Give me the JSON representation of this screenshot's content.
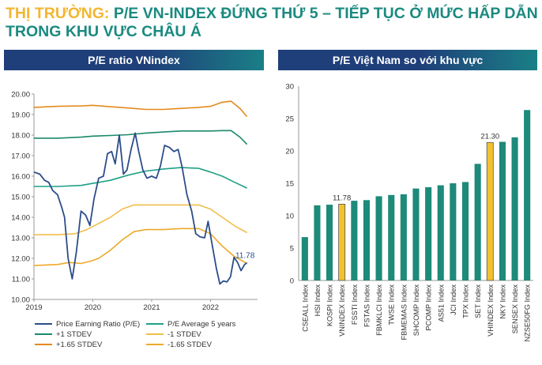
{
  "header": {
    "label": "THỊ TRƯỜNG:",
    "title": "P/E VN-INDEX ĐỨNG THỨ 5 – TIẾP TỤC Ở MỨC HẤP DẪN TRONG KHU VỰC CHÂU Á"
  },
  "colors": {
    "pe": "#2c4d89",
    "avg": "#1ea085",
    "std1": "#1a8a6a",
    "std165": "#e48a1c",
    "neg1": "#f0be4c",
    "neg165": "#eda92a",
    "bar": "#1d8a7a",
    "bar_highlight": "#f2c12e"
  },
  "chart_data": [
    {
      "type": "line",
      "title": "P/E ratio VNindex",
      "ylim": [
        10,
        20
      ],
      "yticks": [
        "10.00",
        "11.00",
        "12.00",
        "13.00",
        "14.00",
        "15.00",
        "16.00",
        "17.00",
        "18.00",
        "19.00",
        "20.00"
      ],
      "xlim": [
        2019,
        2022.8
      ],
      "xticks": [
        {
          "value": 2019,
          "label": "2019"
        },
        {
          "value": 2020,
          "label": "2020"
        },
        {
          "value": 2021,
          "label": "2021"
        },
        {
          "value": 2022,
          "label": "2022"
        }
      ],
      "annotation": {
        "text": "11.78",
        "x": 2022.56,
        "y": 11.78
      },
      "series": [
        {
          "name": "Price Earning Ratio (P/E)",
          "color_key": "pe",
          "points": [
            [
              2019.0,
              16.2
            ],
            [
              2019.1,
              16.1
            ],
            [
              2019.18,
              15.8
            ],
            [
              2019.25,
              15.7
            ],
            [
              2019.32,
              15.3
            ],
            [
              2019.4,
              15.1
            ],
            [
              2019.47,
              14.5
            ],
            [
              2019.52,
              14.0
            ],
            [
              2019.58,
              12.0
            ],
            [
              2019.65,
              11.0
            ],
            [
              2019.72,
              12.3
            ],
            [
              2019.8,
              14.3
            ],
            [
              2019.88,
              14.1
            ],
            [
              2019.95,
              13.6
            ],
            [
              2020.02,
              14.9
            ],
            [
              2020.1,
              15.9
            ],
            [
              2020.18,
              16.0
            ],
            [
              2020.25,
              17.1
            ],
            [
              2020.32,
              17.2
            ],
            [
              2020.38,
              16.6
            ],
            [
              2020.45,
              18.0
            ],
            [
              2020.52,
              16.1
            ],
            [
              2020.58,
              16.3
            ],
            [
              2020.65,
              17.3
            ],
            [
              2020.72,
              18.1
            ],
            [
              2020.78,
              17.2
            ],
            [
              2020.85,
              16.3
            ],
            [
              2020.92,
              15.9
            ],
            [
              2021.0,
              16.0
            ],
            [
              2021.08,
              15.9
            ],
            [
              2021.15,
              16.5
            ],
            [
              2021.22,
              17.5
            ],
            [
              2021.3,
              17.4
            ],
            [
              2021.38,
              17.2
            ],
            [
              2021.45,
              17.3
            ],
            [
              2021.52,
              16.4
            ],
            [
              2021.6,
              15.1
            ],
            [
              2021.68,
              14.3
            ],
            [
              2021.75,
              13.2
            ],
            [
              2021.82,
              13.05
            ],
            [
              2021.9,
              13.0
            ],
            [
              2021.96,
              13.8
            ],
            [
              2022.02,
              12.8
            ],
            [
              2022.1,
              11.5
            ],
            [
              2022.16,
              10.75
            ],
            [
              2022.22,
              10.9
            ],
            [
              2022.28,
              10.85
            ],
            [
              2022.34,
              11.1
            ],
            [
              2022.4,
              12.05
            ],
            [
              2022.46,
              11.8
            ],
            [
              2022.52,
              11.4
            ],
            [
              2022.58,
              11.7
            ],
            [
              2022.62,
              11.78
            ]
          ]
        },
        {
          "name": "P/E Average 5 years",
          "color_key": "avg",
          "points": [
            [
              2019.0,
              15.5
            ],
            [
              2019.4,
              15.5
            ],
            [
              2019.8,
              15.55
            ],
            [
              2020.0,
              15.65
            ],
            [
              2020.3,
              15.8
            ],
            [
              2020.6,
              16.05
            ],
            [
              2020.9,
              16.25
            ],
            [
              2021.2,
              16.35
            ],
            [
              2021.5,
              16.42
            ],
            [
              2021.8,
              16.38
            ],
            [
              2022.0,
              16.2
            ],
            [
              2022.2,
              16.0
            ],
            [
              2022.4,
              15.72
            ],
            [
              2022.62,
              15.42
            ]
          ]
        },
        {
          "name": "+1 STDEV",
          "color_key": "std1",
          "points": [
            [
              2019.0,
              17.85
            ],
            [
              2019.4,
              17.85
            ],
            [
              2019.8,
              17.9
            ],
            [
              2020.0,
              17.95
            ],
            [
              2020.3,
              17.98
            ],
            [
              2020.6,
              18.02
            ],
            [
              2020.9,
              18.1
            ],
            [
              2021.2,
              18.15
            ],
            [
              2021.5,
              18.2
            ],
            [
              2021.8,
              18.2
            ],
            [
              2022.0,
              18.2
            ],
            [
              2022.2,
              18.22
            ],
            [
              2022.35,
              18.22
            ],
            [
              2022.5,
              17.9
            ],
            [
              2022.62,
              17.55
            ]
          ]
        },
        {
          "name": "+1.65 STDEV",
          "color_key": "std165",
          "points": [
            [
              2019.0,
              19.35
            ],
            [
              2019.4,
              19.4
            ],
            [
              2019.8,
              19.42
            ],
            [
              2020.0,
              19.45
            ],
            [
              2020.3,
              19.38
            ],
            [
              2020.6,
              19.32
            ],
            [
              2020.9,
              19.25
            ],
            [
              2021.2,
              19.25
            ],
            [
              2021.5,
              19.3
            ],
            [
              2021.8,
              19.35
            ],
            [
              2022.0,
              19.4
            ],
            [
              2022.2,
              19.6
            ],
            [
              2022.35,
              19.65
            ],
            [
              2022.5,
              19.3
            ],
            [
              2022.62,
              18.9
            ]
          ]
        },
        {
          "name": "-1 STDEV",
          "color_key": "neg1",
          "points": [
            [
              2019.0,
              13.15
            ],
            [
              2019.4,
              13.15
            ],
            [
              2019.7,
              13.2
            ],
            [
              2019.9,
              13.4
            ],
            [
              2020.1,
              13.7
            ],
            [
              2020.3,
              14.0
            ],
            [
              2020.5,
              14.4
            ],
            [
              2020.7,
              14.6
            ],
            [
              2020.9,
              14.6
            ],
            [
              2021.2,
              14.6
            ],
            [
              2021.5,
              14.6
            ],
            [
              2021.8,
              14.6
            ],
            [
              2022.0,
              14.4
            ],
            [
              2022.2,
              14.0
            ],
            [
              2022.4,
              13.6
            ],
            [
              2022.62,
              13.25
            ]
          ]
        },
        {
          "name": "-1.65 STDEV",
          "color_key": "neg165",
          "points": [
            [
              2019.0,
              11.65
            ],
            [
              2019.4,
              11.7
            ],
            [
              2019.6,
              11.8
            ],
            [
              2019.8,
              11.75
            ],
            [
              2019.95,
              11.85
            ],
            [
              2020.1,
              12.0
            ],
            [
              2020.3,
              12.4
            ],
            [
              2020.5,
              12.9
            ],
            [
              2020.7,
              13.3
            ],
            [
              2020.9,
              13.4
            ],
            [
              2021.2,
              13.4
            ],
            [
              2021.5,
              13.45
            ],
            [
              2021.8,
              13.45
            ],
            [
              2022.0,
              13.2
            ],
            [
              2022.2,
              12.6
            ],
            [
              2022.4,
              12.1
            ],
            [
              2022.62,
              11.75
            ]
          ]
        }
      ],
      "legend": [
        "Price Earning Ratio (P/E)",
        "P/E Average 5 years",
        "+1 STDEV",
        "-1 STDEV",
        "+1.65 STDEV",
        "-1.65 STDEV"
      ]
    },
    {
      "type": "bar",
      "title": "P/E Việt Nam so với khu vực",
      "ylim": [
        0,
        30
      ],
      "yticks": [
        "0",
        "5",
        "10",
        "15",
        "20",
        "25",
        "30"
      ],
      "categories": [
        "CSEALL Index",
        "HSI Index",
        "KOSPI Index",
        "VNINDEX Index",
        "FSSTI Index",
        "FSTAS Index",
        "FBMKLCI Index",
        "TWSE Index",
        "FBMEMAS Index",
        "SHCOMP Index",
        "PCOMP Index",
        "AS51 Index",
        "JCI Index",
        "TPX Index",
        "SET Index",
        "VHINDEX Index",
        "NKY Index",
        "SENSEX Index",
        "NZSE50FG Index"
      ],
      "values": [
        6.7,
        11.6,
        11.7,
        11.78,
        12.3,
        12.4,
        13.0,
        13.2,
        13.3,
        14.2,
        14.4,
        14.7,
        15.0,
        15.2,
        18.0,
        21.3,
        21.4,
        22.1,
        26.3
      ],
      "highlight": [
        "VNINDEX Index",
        "VHINDEX Index"
      ],
      "data_labels": [
        {
          "category": "VNINDEX Index",
          "text": "11.78"
        },
        {
          "category": "VHINDEX Index",
          "text": "21.30"
        }
      ]
    }
  ]
}
